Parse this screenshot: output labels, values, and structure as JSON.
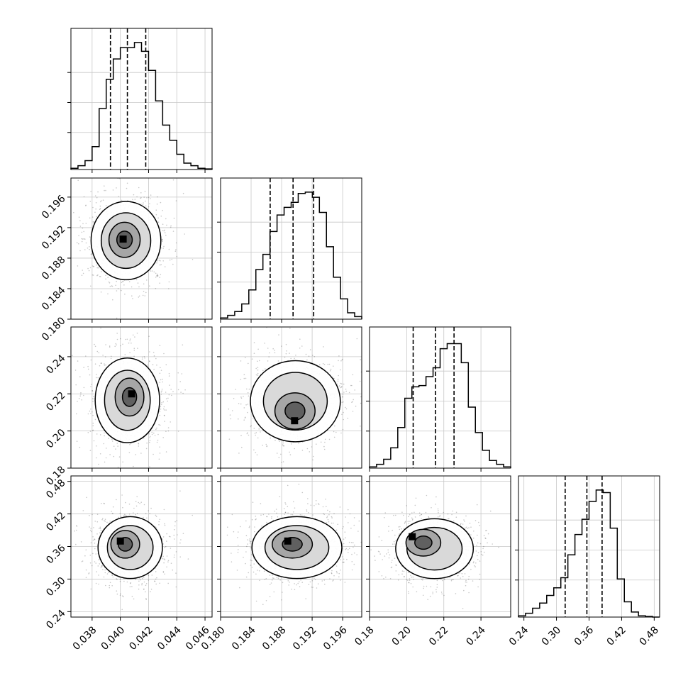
{
  "chart_data": {
    "type": "corner",
    "grid": true,
    "colors": {
      "line": "#000000",
      "grid": "#c8c8c8",
      "fill": "#ffffff",
      "scatter": "#000000"
    },
    "parameters": [
      {
        "range": [
          0.0365,
          0.0465
        ],
        "ticks": [
          "0.038",
          "0.040",
          "0.042",
          "0.044",
          "0.046"
        ],
        "tick_values": [
          0.038,
          0.04,
          0.042,
          0.044,
          0.046
        ]
      },
      {
        "range": [
          0.18,
          0.1985
        ],
        "ticks": [
          "0.180",
          "0.184",
          "0.188",
          "0.192",
          "0.196"
        ],
        "tick_values": [
          0.18,
          0.184,
          0.188,
          0.192,
          0.196
        ]
      },
      {
        "range": [
          0.18,
          0.256
        ],
        "ticks": [
          "0.18",
          "0.20",
          "0.22",
          "0.24"
        ],
        "tick_values": [
          0.18,
          0.2,
          0.22,
          0.24
        ]
      },
      {
        "range": [
          0.23,
          0.49
        ],
        "ticks": [
          "0.24",
          "0.30",
          "0.36",
          "0.42",
          "0.48"
        ],
        "tick_values": [
          0.24,
          0.3,
          0.36,
          0.42,
          0.48
        ]
      }
    ],
    "diagonal": [
      {
        "param": 0,
        "quantiles": [
          0.0393,
          0.0405,
          0.0418
        ],
        "counts": [
          0.01,
          0.03,
          0.07,
          0.18,
          0.48,
          0.71,
          0.87,
          0.96,
          0.96,
          1.0,
          0.93,
          0.78,
          0.54,
          0.35,
          0.23,
          0.12,
          0.05,
          0.03,
          0.01,
          0.005
        ]
      },
      {
        "param": 1,
        "quantiles": [
          0.1865,
          0.1895,
          0.1922
        ],
        "counts": [
          0.01,
          0.03,
          0.06,
          0.12,
          0.23,
          0.39,
          0.51,
          0.69,
          0.82,
          0.88,
          0.92,
          0.99,
          1.0,
          0.96,
          0.84,
          0.57,
          0.33,
          0.16,
          0.05,
          0.02
        ]
      },
      {
        "param": 2,
        "quantiles": [
          0.2035,
          0.2155,
          0.2255
        ],
        "counts": [
          0.01,
          0.03,
          0.07,
          0.16,
          0.32,
          0.55,
          0.64,
          0.65,
          0.72,
          0.79,
          0.94,
          0.98,
          0.98,
          0.83,
          0.48,
          0.28,
          0.14,
          0.06,
          0.03,
          0.01
        ]
      },
      {
        "param": 3,
        "quantiles": [
          0.316,
          0.356,
          0.384
        ],
        "counts": [
          0.01,
          0.03,
          0.07,
          0.11,
          0.17,
          0.23,
          0.31,
          0.49,
          0.65,
          0.77,
          0.91,
          1.0,
          0.98,
          0.7,
          0.3,
          0.12,
          0.04,
          0.01,
          0.005,
          0.0
        ]
      }
    ],
    "pairs": [
      {
        "x": 0,
        "y": 1,
        "mean": [
          0.0404,
          0.1903
        ],
        "spread": [
          0.0013,
          0.0027
        ],
        "peak": [
          0.0402,
          0.1905
        ]
      },
      {
        "x": 0,
        "y": 2,
        "mean": [
          0.0405,
          0.2165
        ],
        "spread": [
          0.0012,
          0.012
        ],
        "peak": [
          0.0408,
          0.22
        ]
      },
      {
        "x": 1,
        "y": 2,
        "mean": [
          0.1898,
          0.216
        ],
        "spread": [
          0.0031,
          0.0115
        ],
        "peak": [
          0.1897,
          0.2055
        ]
      },
      {
        "x": 0,
        "y": 3,
        "mean": [
          0.0407,
          0.358
        ],
        "spread": [
          0.0012,
          0.03
        ],
        "peak": [
          0.04,
          0.37
        ]
      },
      {
        "x": 1,
        "y": 3,
        "mean": [
          0.19,
          0.358
        ],
        "spread": [
          0.0031,
          0.03
        ],
        "peak": [
          0.1888,
          0.37
        ]
      },
      {
        "x": 2,
        "y": 3,
        "mean": [
          0.215,
          0.356
        ],
        "spread": [
          0.011,
          0.029
        ],
        "peak": [
          0.203,
          0.378
        ]
      }
    ],
    "axis_labels_x": [
      "",
      "",
      "",
      ""
    ],
    "axis_labels_y": [
      "",
      "",
      "",
      ""
    ],
    "title": ""
  }
}
